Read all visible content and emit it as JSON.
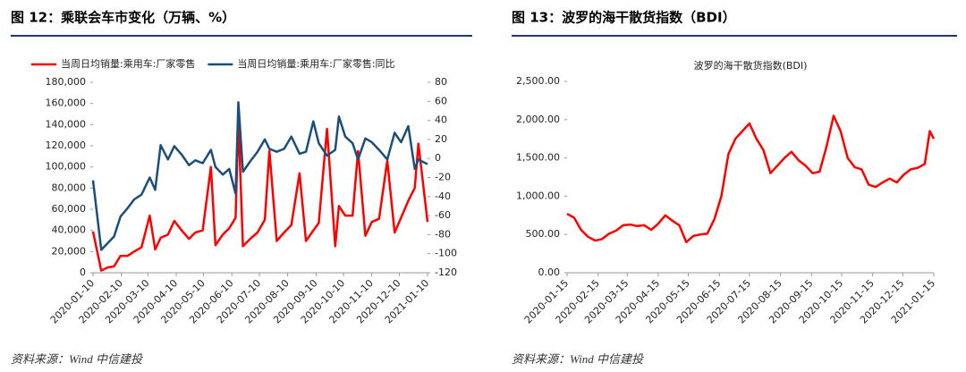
{
  "chart_data": [
    {
      "type": "line",
      "title": "图 12：乘联会车市变化（万辆、%）",
      "source": "资料来源：Wind 中信建投",
      "x": [
        "2020-01-10",
        "2020-01-19",
        "2020-01-26",
        "2020-02-02",
        "2020-02-09",
        "2020-02-17",
        "2020-02-24",
        "2020-03-03",
        "2020-03-12",
        "2020-03-18",
        "2020-03-24",
        "2020-04-01",
        "2020-04-08",
        "2020-04-16",
        "2020-04-24",
        "2020-05-01",
        "2020-05-09",
        "2020-05-18",
        "2020-05-23",
        "2020-05-31",
        "2020-06-07",
        "2020-06-14",
        "2020-06-17",
        "2020-06-22",
        "2020-06-30",
        "2020-07-08",
        "2020-07-16",
        "2020-07-21",
        "2020-07-29",
        "2020-08-06",
        "2020-08-14",
        "2020-08-23",
        "2020-08-30",
        "2020-09-07",
        "2020-09-13",
        "2020-09-22",
        "2020-10-01",
        "2020-10-05",
        "2020-10-12",
        "2020-10-20",
        "2020-10-26",
        "2020-11-03",
        "2020-11-10",
        "2020-11-18",
        "2020-11-27",
        "2020-12-05",
        "2020-12-12",
        "2020-12-20",
        "2020-12-27",
        "2020-12-31",
        "2021-01-10"
      ],
      "xlim": [
        "2020-01-10",
        "2021-01-10"
      ],
      "xticks": [
        "2020-01-10",
        "2020-02-10",
        "2020-03-10",
        "2020-04-10",
        "2020-05-10",
        "2020-06-10",
        "2020-07-10",
        "2020-08-10",
        "2020-09-10",
        "2020-10-10",
        "2020-11-10",
        "2020-12-10",
        "2021-01-10"
      ],
      "ylim": [
        0,
        180000
      ],
      "yticks": [
        0,
        {
          "value": 20000,
          "label": "20,000"
        },
        {
          "value": 40000,
          "label": "40,000"
        },
        {
          "value": 60000,
          "label": "60,000"
        },
        {
          "value": 80000,
          "label": "80,000"
        },
        {
          "value": 100000,
          "label": "100,000"
        },
        {
          "value": 120000,
          "label": "120,000"
        },
        {
          "value": 140000,
          "label": "140,000"
        },
        {
          "value": 160000,
          "label": "160,000"
        },
        {
          "value": 180000,
          "label": "180,000"
        }
      ],
      "y2lim": [
        -120,
        80
      ],
      "y2ticks": [
        -120,
        -100,
        -80,
        -60,
        -40,
        -20,
        0,
        20,
        40,
        60,
        80
      ],
      "legend": "top",
      "series": [
        {
          "name": "当周日均销量:乘用车:厂家零售",
          "color": "#ff0000",
          "values": [
            39000,
            2000,
            5000,
            6000,
            16000,
            16000,
            20000,
            24000,
            54000,
            22000,
            33000,
            36000,
            49000,
            40000,
            32000,
            38000,
            40000,
            100000,
            26000,
            36000,
            42000,
            52000,
            145000,
            25000,
            32000,
            38000,
            50000,
            115000,
            30000,
            38000,
            45000,
            94000,
            30000,
            40000,
            47000,
            136000,
            25000,
            63000,
            54000,
            54000,
            115000,
            35000,
            48000,
            51000,
            106000,
            38000,
            52000,
            68000,
            80000,
            122000,
            48000
          ]
        },
        {
          "name": "当周日均销量:乘用车:厂家零售:同比",
          "color": "#1b4f7a",
          "axis": "y2",
          "values": [
            -23,
            -96,
            -89,
            -82,
            -61,
            -52,
            -43,
            -38,
            -20,
            -33,
            14,
            -1,
            13,
            4,
            -7,
            -2,
            -5,
            9,
            -9,
            -17,
            -11,
            -37,
            59,
            -14,
            -3,
            7,
            20,
            10,
            7,
            10,
            23,
            5,
            7,
            39,
            16,
            3,
            9,
            44,
            23,
            16,
            -1,
            21,
            17,
            9,
            -1,
            27,
            17,
            34,
            -11,
            -1,
            -6
          ]
        }
      ]
    },
    {
      "type": "line",
      "title": "图 13：波罗的海干散货指数（BDI）",
      "subtitle": "波罗的海干散货指数(BDI)",
      "source": "资料来源：Wind 中信建投",
      "x": [
        "2020-01-15",
        "2020-01-22",
        "2020-01-29",
        "2020-02-05",
        "2020-02-12",
        "2020-02-19",
        "2020-02-26",
        "2020-03-04",
        "2020-03-11",
        "2020-03-18",
        "2020-03-25",
        "2020-04-01",
        "2020-04-08",
        "2020-04-15",
        "2020-04-22",
        "2020-04-29",
        "2020-05-06",
        "2020-05-13",
        "2020-05-20",
        "2020-05-27",
        "2020-06-03",
        "2020-06-10",
        "2020-06-17",
        "2020-06-24",
        "2020-07-01",
        "2020-07-08",
        "2020-07-15",
        "2020-07-22",
        "2020-07-29",
        "2020-08-05",
        "2020-08-12",
        "2020-08-19",
        "2020-08-26",
        "2020-09-02",
        "2020-09-09",
        "2020-09-16",
        "2020-09-23",
        "2020-09-30",
        "2020-10-07",
        "2020-10-14",
        "2020-10-21",
        "2020-10-28",
        "2020-11-04",
        "2020-11-11",
        "2020-11-18",
        "2020-11-25",
        "2020-12-02",
        "2020-12-09",
        "2020-12-16",
        "2020-12-23",
        "2020-12-30",
        "2021-01-06",
        "2021-01-11",
        "2021-01-15"
      ],
      "xlim": [
        "2020-01-15",
        "2021-01-15"
      ],
      "xticks": [
        "2020-01-15",
        "2020-02-15",
        "2020-03-15",
        "2020-04-15",
        "2020-05-15",
        "2020-06-15",
        "2020-07-15",
        "2020-08-15",
        "2020-09-15",
        "2020-10-15",
        "2020-11-15",
        "2020-12-15",
        "2021-01-15"
      ],
      "ylim": [
        0,
        2500
      ],
      "yticks": [
        {
          "value": 0,
          "label": "0.00"
        },
        {
          "value": 500,
          "label": "500.00"
        },
        {
          "value": 1000,
          "label": "1,000.00"
        },
        {
          "value": 1500,
          "label": "1,500.00"
        },
        {
          "value": 2000,
          "label": "2,000.00"
        },
        {
          "value": 2500,
          "label": "2,500.00"
        }
      ],
      "series": [
        {
          "color": "#ff0000",
          "values": [
            770,
            720,
            560,
            470,
            420,
            440,
            510,
            550,
            620,
            630,
            610,
            620,
            560,
            640,
            750,
            680,
            620,
            400,
            480,
            500,
            510,
            700,
            1000,
            1550,
            1750,
            1850,
            1950,
            1750,
            1600,
            1300,
            1400,
            1500,
            1580,
            1470,
            1400,
            1300,
            1320,
            1650,
            2050,
            1850,
            1500,
            1380,
            1350,
            1150,
            1120,
            1180,
            1230,
            1180,
            1280,
            1350,
            1370,
            1420,
            1850,
            1750
          ]
        }
      ]
    }
  ]
}
